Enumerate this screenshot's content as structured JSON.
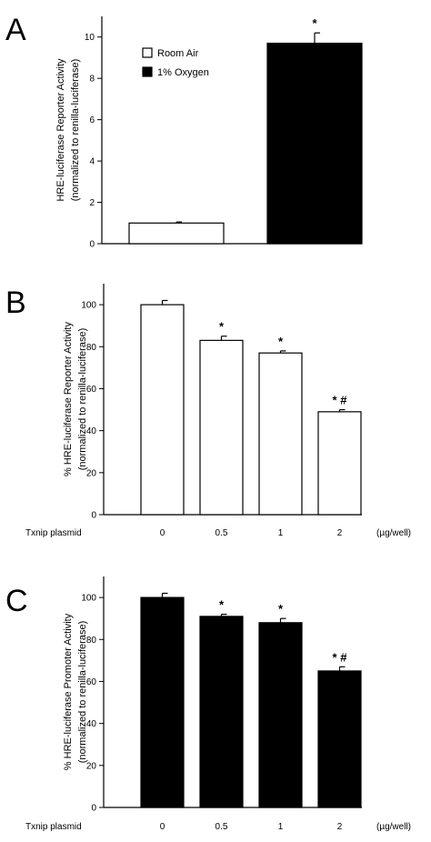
{
  "chart_data": [
    {
      "panel": "A",
      "type": "bar",
      "categories": [
        "Room Air",
        "1% Oxygen"
      ],
      "values": [
        1.0,
        9.7
      ],
      "errors": [
        0.05,
        0.5
      ],
      "significance": [
        "",
        "*"
      ],
      "fills": [
        "#ffffff",
        "#000000"
      ],
      "legend": [
        "Room Air",
        "1% Oxygen"
      ],
      "ylabel": [
        "HRE-luciferase Reporter Activity",
        "(normalized to renilla-luciferase)"
      ],
      "ylim": [
        0,
        11
      ],
      "yticks": [
        0,
        2,
        4,
        6,
        8,
        10
      ]
    },
    {
      "panel": "B",
      "type": "bar",
      "xgroup_label": "Txnip plasmid",
      "xunit": "(µg/well)",
      "categories": [
        "0",
        "0.5",
        "1",
        "2"
      ],
      "values": [
        100,
        83,
        77,
        49
      ],
      "errors": [
        2,
        2,
        1,
        1
      ],
      "significance": [
        "",
        "*",
        "*",
        "* #"
      ],
      "fill": "#ffffff",
      "ylabel": [
        "% HRE-luciferase Reporter Activity",
        "(normalized to renilla-luciferase)"
      ],
      "ylim": [
        0,
        110
      ],
      "yticks": [
        0,
        20,
        40,
        60,
        80,
        100
      ]
    },
    {
      "panel": "C",
      "type": "bar",
      "xgroup_label": "Txnip plasmid",
      "xunit": "(µg/well)",
      "categories": [
        "0",
        "0.5",
        "1",
        "2"
      ],
      "values": [
        100,
        91,
        88,
        65
      ],
      "errors": [
        2,
        1,
        2,
        2
      ],
      "significance": [
        "",
        "*",
        "*",
        "* #"
      ],
      "fill": "#000000",
      "ylabel": [
        "% HRE-luciferase Promoter Activity",
        "(normalized to renilla-luciferase)"
      ],
      "ylim": [
        0,
        110
      ],
      "yticks": [
        0,
        20,
        40,
        60,
        80,
        100
      ]
    }
  ]
}
